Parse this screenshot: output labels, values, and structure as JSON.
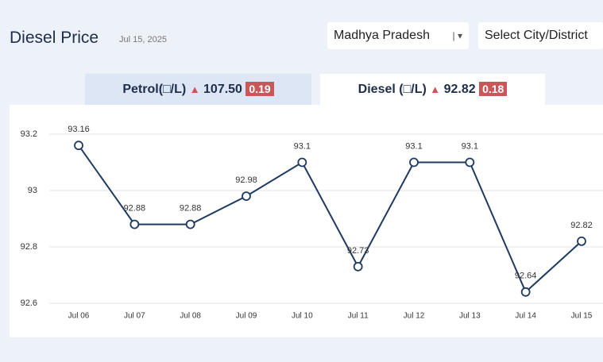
{
  "header": {
    "title": "Diesel Price",
    "date": "Jul 15, 2025",
    "state": "Madhya Pradesh",
    "city": "Select City/District"
  },
  "tabs": [
    {
      "label": "Petrol(□/L)",
      "price": "107.50",
      "change": "0.19"
    },
    {
      "label": "Diesel (□/L)",
      "price": "92.82",
      "change": "0.18"
    }
  ],
  "chart_data": {
    "type": "line",
    "categories": [
      "Jul 06",
      "Jul 07",
      "Jul 08",
      "Jul 09",
      "Jul 10",
      "Jul 11",
      "Jul 12",
      "Jul 13",
      "Jul 14",
      "Jul 15"
    ],
    "values": [
      93.16,
      92.88,
      92.88,
      92.98,
      93.1,
      92.73,
      93.1,
      93.1,
      92.64,
      92.82
    ],
    "color": "#1f3a60",
    "ylim": [
      92.6,
      93.2
    ],
    "yticks": [
      92.6,
      92.8,
      93,
      93.2
    ],
    "grid": true
  }
}
